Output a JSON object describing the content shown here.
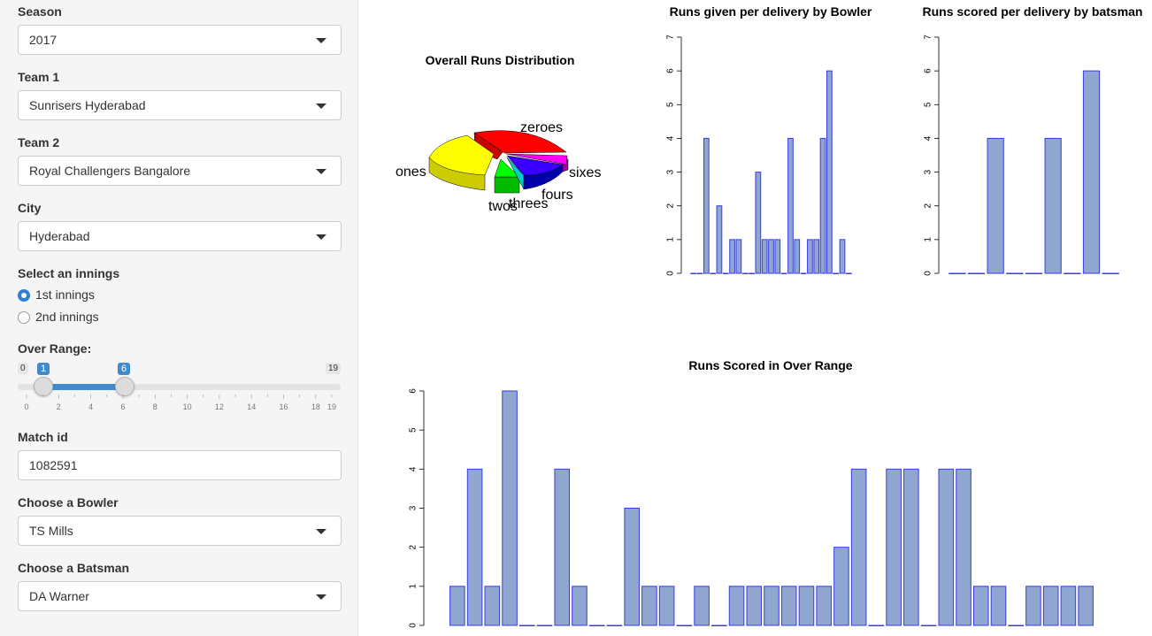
{
  "sidebar": {
    "season": {
      "label": "Season",
      "value": "2017"
    },
    "team1": {
      "label": "Team 1",
      "value": "Sunrisers Hyderabad"
    },
    "team2": {
      "label": "Team 2",
      "value": "Royal Challengers Bangalore"
    },
    "city": {
      "label": "City",
      "value": "Hyderabad"
    },
    "innings": {
      "label": "Select an innings",
      "options": [
        "1st innings",
        "2nd innings"
      ],
      "selected": "1st innings"
    },
    "over_range": {
      "label": "Over Range:",
      "min": "0",
      "max": "19",
      "low": "1",
      "high": "6",
      "ticks": [
        "0",
        "2",
        "4",
        "6",
        "8",
        "10",
        "12",
        "14",
        "16",
        "18",
        "19"
      ]
    },
    "match_id": {
      "label": "Match id",
      "value": "1082591"
    },
    "bowler": {
      "label": "Choose a Bowler",
      "value": "TS Mills"
    },
    "batsman": {
      "label": "Choose a Batsman",
      "value": "DA Warner"
    }
  },
  "colors": {
    "bar_fill": "#8fa7d0",
    "bar_stroke": "#3b3bdd"
  },
  "chart_data": [
    {
      "type": "pie",
      "title": "Overall Runs Distribution",
      "categories": [
        "zeroes",
        "ones",
        "twos",
        "threes",
        "fours",
        "sixes"
      ],
      "values": [
        37,
        35,
        5,
        1,
        14,
        8
      ],
      "colors": [
        "#ff0000",
        "#ffff00",
        "#00ff00",
        "#00ffff",
        "#0000ff",
        "#ff00ff"
      ]
    },
    {
      "type": "bar",
      "title": "Runs given per delivery by Bowler",
      "values": [
        0,
        0,
        4,
        0,
        2,
        0,
        1,
        1,
        0,
        0,
        3,
        1,
        1,
        1,
        0,
        4,
        1,
        0,
        1,
        1,
        4,
        6,
        0,
        1,
        0
      ],
      "yticks": [
        "0",
        "1",
        "2",
        "3",
        "4",
        "5",
        "6",
        "7"
      ],
      "ylim": [
        0,
        7
      ]
    },
    {
      "type": "bar",
      "title": "Runs scored per delivery by batsman",
      "values": [
        0,
        0,
        4,
        0,
        0,
        4,
        0,
        6,
        0
      ],
      "yticks": [
        "0",
        "1",
        "2",
        "3",
        "4",
        "5",
        "6",
        "7"
      ],
      "ylim": [
        0,
        7
      ]
    },
    {
      "type": "bar",
      "title": "Runs Scored in Over Range",
      "values": [
        1,
        4,
        1,
        6,
        0,
        0,
        4,
        1,
        0,
        0,
        3,
        1,
        1,
        0,
        1,
        0,
        1,
        1,
        1,
        1,
        1,
        1,
        2,
        4,
        0,
        4,
        4,
        0,
        4,
        4,
        1,
        1,
        0,
        1,
        1,
        1,
        1
      ],
      "yticks": [
        "0",
        "1",
        "2",
        "3",
        "4",
        "5",
        "6"
      ],
      "ylim": [
        0,
        6
      ]
    }
  ]
}
